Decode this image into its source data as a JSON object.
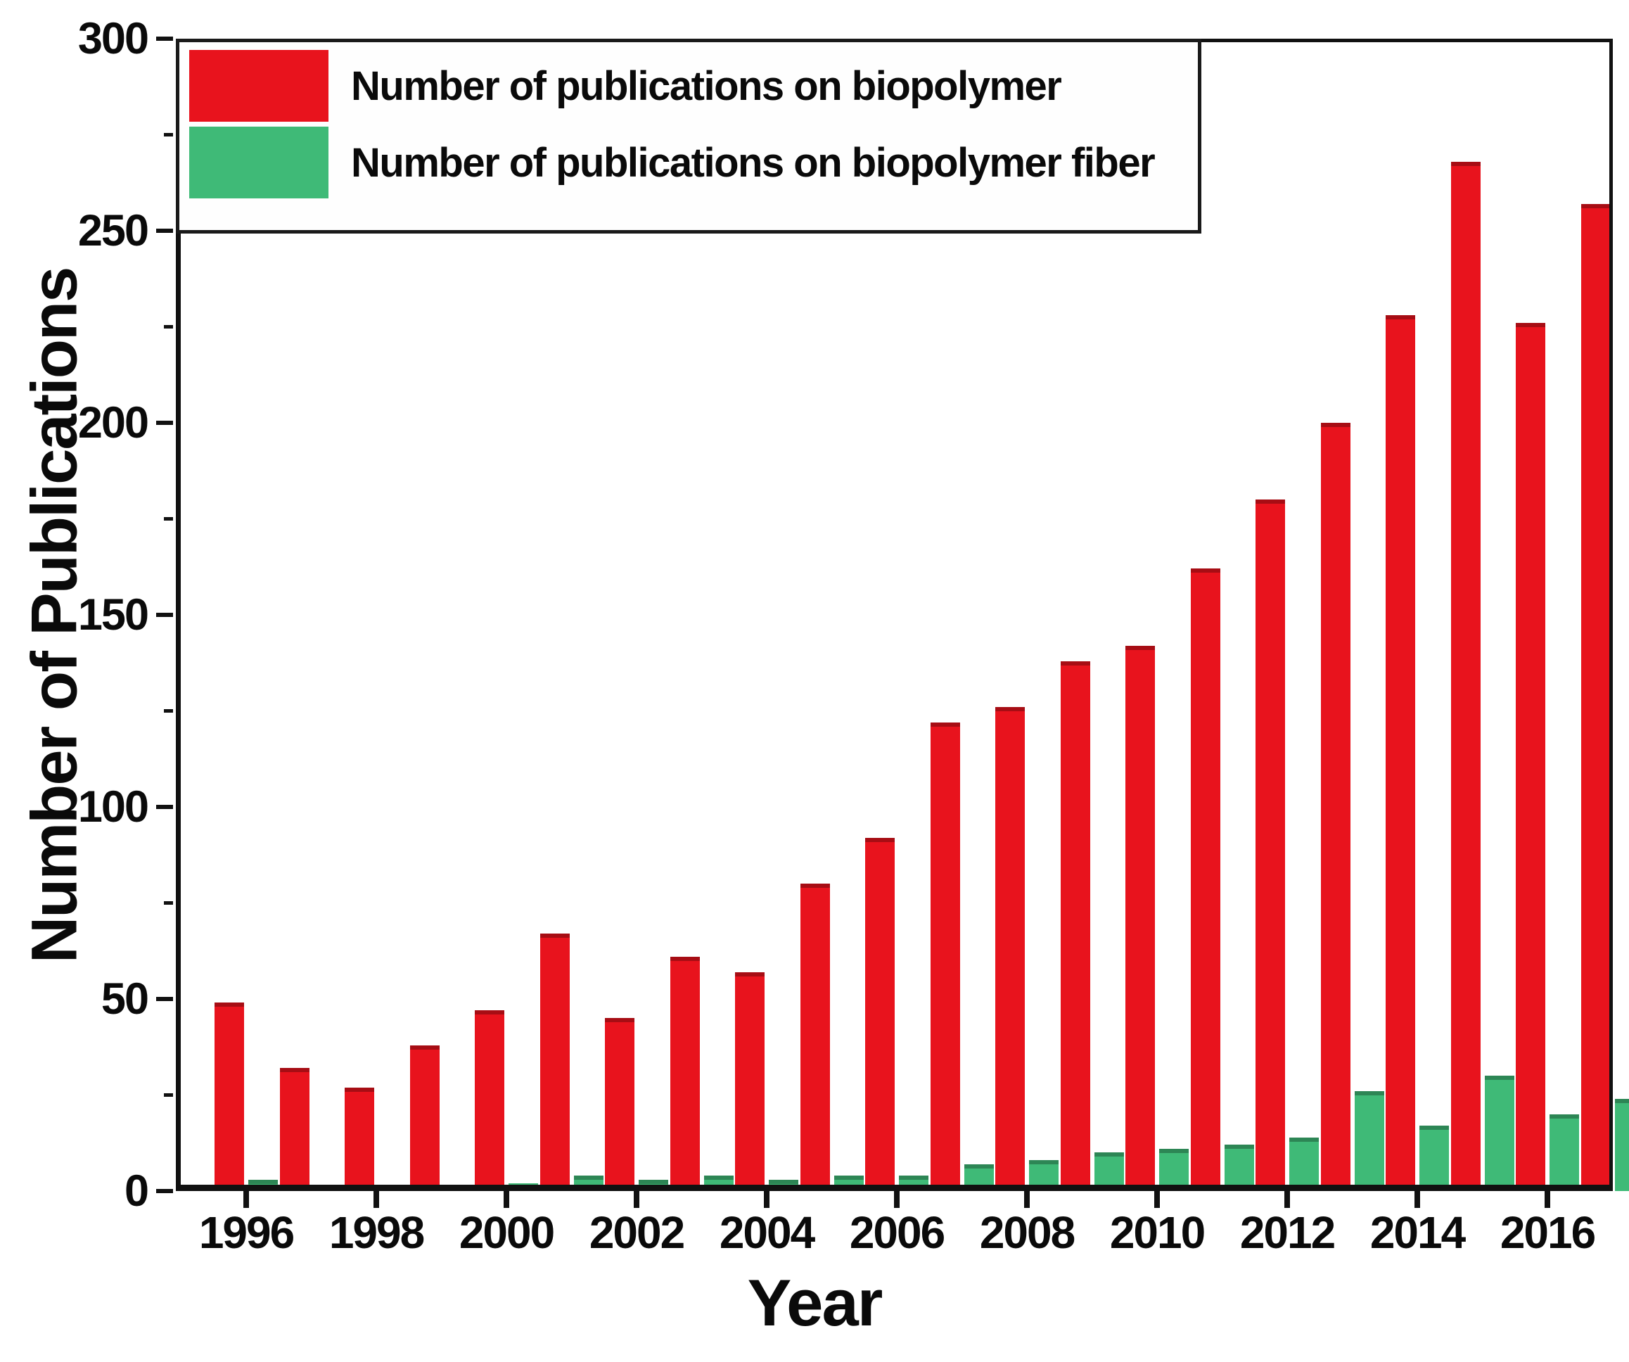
{
  "chart_data": {
    "type": "bar",
    "title": "",
    "xlabel": "Year",
    "ylabel": "Number of Publications",
    "categories": [
      1996,
      1997,
      1998,
      1999,
      2000,
      2001,
      2002,
      2003,
      2004,
      2005,
      2006,
      2007,
      2008,
      2009,
      2010,
      2011,
      2012,
      2013,
      2014,
      2015,
      2016,
      2017
    ],
    "series": [
      {
        "name": "Number of publications on biopolymer",
        "color": "#e8131d",
        "values": [
          49,
          32,
          27,
          38,
          47,
          67,
          45,
          61,
          57,
          80,
          92,
          122,
          126,
          138,
          142,
          162,
          180,
          200,
          228,
          268,
          226,
          257
        ]
      },
      {
        "name": "Number of publications on biopolymer fiber",
        "color": "#3fba77",
        "values": [
          3,
          1,
          1,
          1,
          2,
          4,
          3,
          4,
          3,
          4,
          4,
          7,
          8,
          10,
          11,
          12,
          14,
          26,
          17,
          30,
          20,
          24
        ]
      }
    ],
    "ylim": [
      0,
      300
    ],
    "ytick_step": 50,
    "yminor_step": 25,
    "xtick_labels": [
      "1996",
      "1998",
      "2000",
      "2002",
      "2004",
      "2006",
      "2008",
      "2010",
      "2012",
      "2014",
      "2016"
    ],
    "legend_position": "top-left",
    "grid": false,
    "axis_color": "#111111",
    "text_color": "#0a0a0a"
  }
}
